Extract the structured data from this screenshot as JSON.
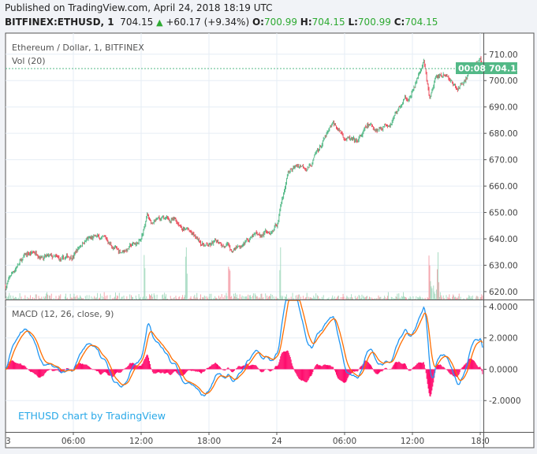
{
  "header": {
    "published": "Published on TradingView.com, April 24, 2018 18:19 UTC",
    "symbol": "BITFINEX:ETHUSD, 1",
    "last": "704.15",
    "change": "+60.17 (+9.34%)",
    "o_label": "O:",
    "o": "700.99",
    "h_label": "H:",
    "h": "704.15",
    "l_label": "L:",
    "l": "700.99",
    "c_label": "C:",
    "c": "704.15",
    "change_icon": "triangle-up-icon"
  },
  "legend": {
    "title": "Ethereum / Dollar, 1, BITFINEX",
    "volume": "Vol (20)",
    "macd": "MACD (12, 26, close, 9)",
    "watermark": "ETHUSD chart by TradingView"
  },
  "price_label": {
    "value": "704.15",
    "countdown": "00:08"
  },
  "colors": {
    "up": "#53b987",
    "down": "#eb4d5c",
    "macd": "#2196f3",
    "signal": "#ff6d00",
    "hist": "#ff0a6c",
    "watermark": "#29a9e8",
    "price_tag": "#53b987"
  },
  "chart_data": {
    "type": "candlestick",
    "interval": "1",
    "price_axis": {
      "ticks": [
        "710.00",
        "700.00",
        "690.00",
        "680.00",
        "670.00",
        "660.00",
        "650.00",
        "640.00",
        "630.00",
        "620.00"
      ],
      "range": [
        617,
        718
      ]
    },
    "macd_axis": {
      "ticks": [
        "4.0000",
        "2.0000",
        "0.0000",
        "-2.0000"
      ],
      "range": [
        -4,
        4.4
      ]
    },
    "time_axis": {
      "ticks": [
        "3",
        "06:00",
        "12:00",
        "18:00",
        "24",
        "06:00",
        "12:00",
        "18:0"
      ]
    },
    "hourly_close_approx": {
      "hours_from_apr23_0000": [
        0,
        1,
        2,
        3,
        4,
        5,
        6,
        7,
        8,
        9,
        10,
        11,
        12,
        12.5,
        13,
        14,
        15,
        16,
        17,
        18,
        19,
        20,
        21,
        22,
        23,
        24,
        25,
        26,
        27,
        28,
        29,
        30,
        31,
        32,
        33,
        34,
        35,
        36,
        37,
        37.5,
        38,
        39,
        40,
        41,
        42,
        42.3
      ],
      "close": [
        622,
        630,
        634,
        635,
        632.5,
        631,
        634,
        640,
        640,
        639,
        635,
        637,
        639,
        649,
        645.5,
        646.5,
        646.5,
        644,
        639,
        637,
        639,
        636,
        639,
        641,
        642.5,
        645,
        665,
        668,
        668,
        676,
        682.7,
        679,
        675.6,
        682,
        682,
        685,
        691,
        695.6,
        707,
        692.5,
        700,
        701.7,
        697,
        703,
        708,
        704.15
      ]
    }
  }
}
